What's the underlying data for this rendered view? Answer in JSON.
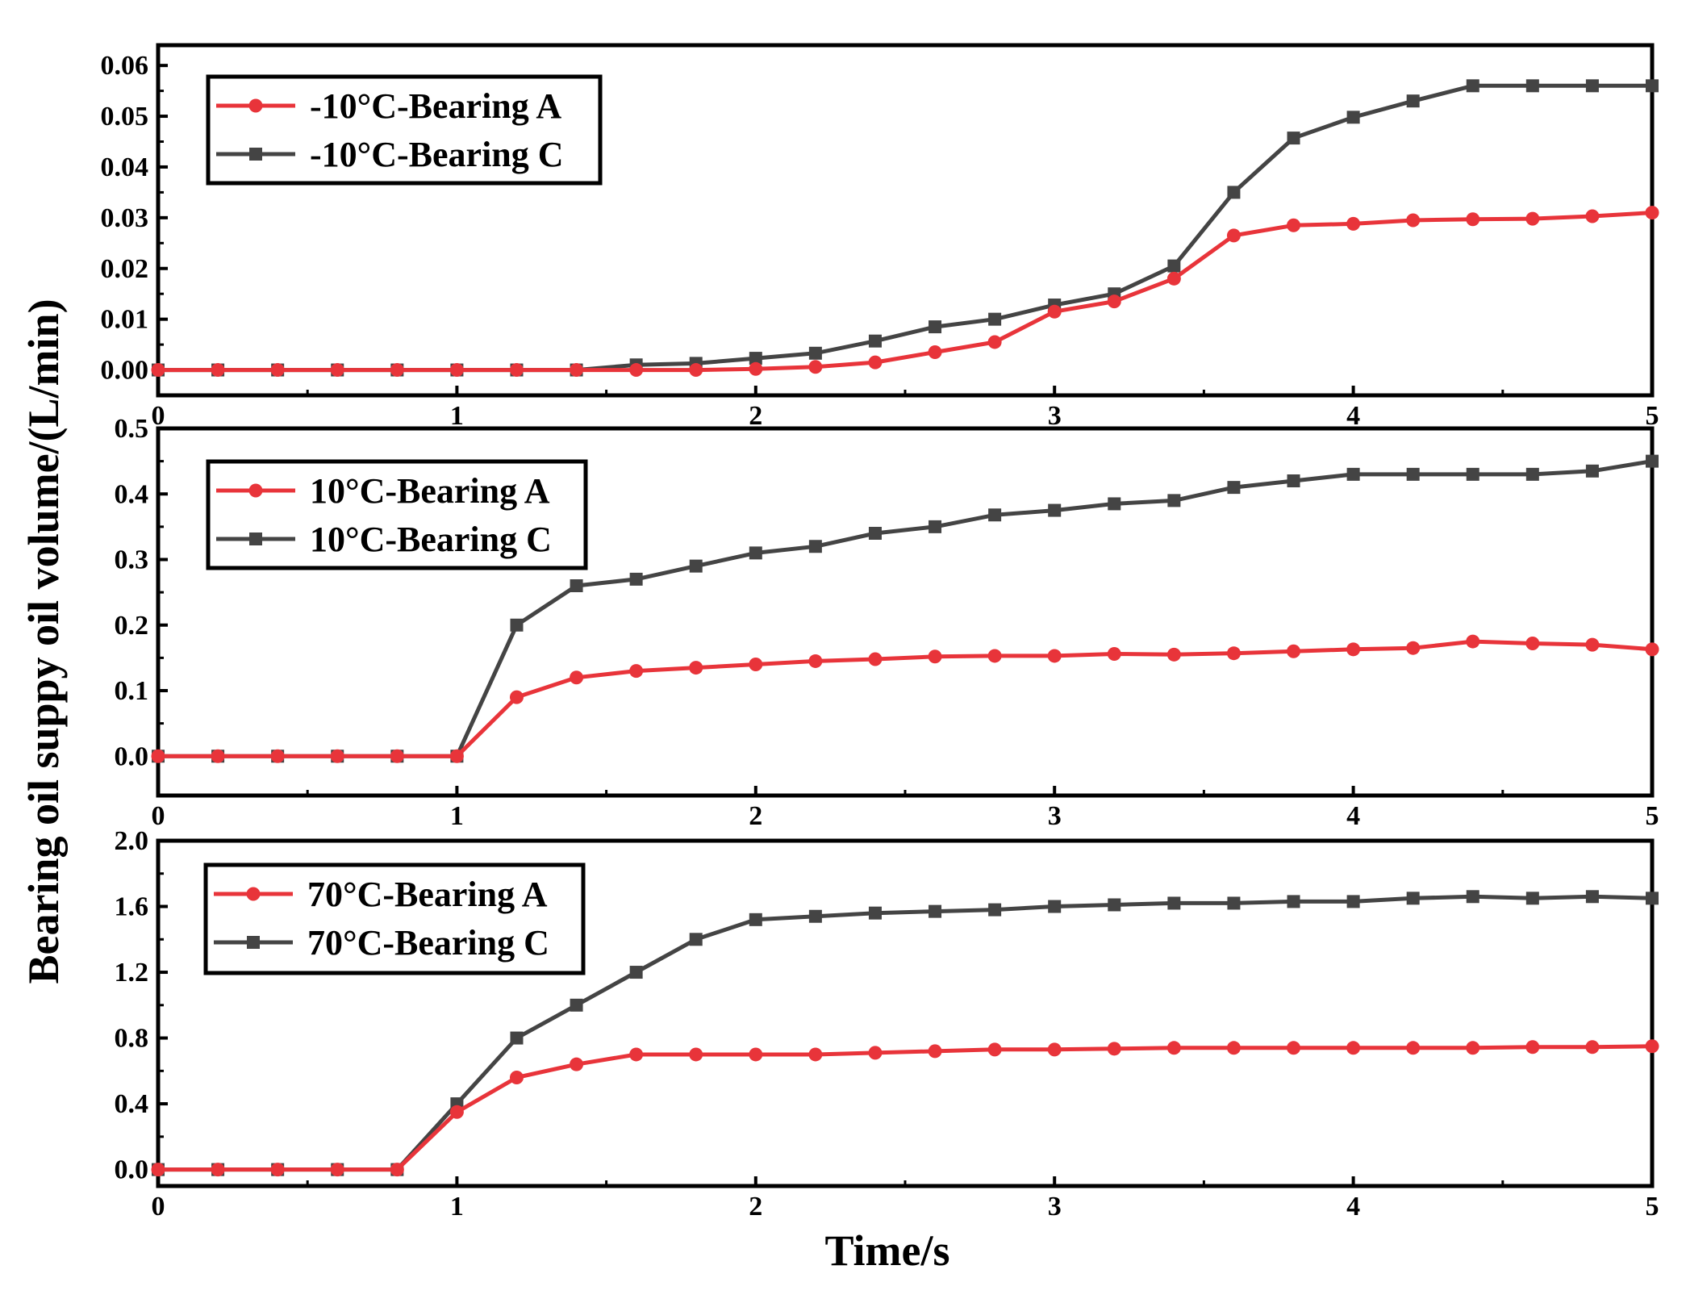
{
  "figure": {
    "xlabel": "Time/s",
    "ylabel": "Bearing  oil suppy oil volume/(L/min)",
    "colors": {
      "bearing_a": "#e8343a",
      "bearing_c": "#444444"
    }
  },
  "chart_data": [
    {
      "type": "line",
      "xlim": [
        0,
        5
      ],
      "ylim": [
        -0.005,
        0.064
      ],
      "xticks": [
        0,
        1,
        2,
        3,
        4,
        5
      ],
      "xtick_labels": [
        "0",
        "1",
        "2",
        "3",
        "4",
        "5"
      ],
      "yticks": [
        0.0,
        0.01,
        0.02,
        0.03,
        0.04,
        0.05,
        0.06
      ],
      "ytick_labels": [
        "0.00",
        "0.01",
        "0.02",
        "0.03",
        "0.04",
        "0.05",
        "0.06"
      ],
      "legend_position": "top-left",
      "series": [
        {
          "name": "-10°C-Bearing A",
          "marker": "circle",
          "color_key": "bearing_a",
          "x": [
            0,
            0.2,
            0.4,
            0.6,
            0.8,
            1.0,
            1.2,
            1.4,
            1.6,
            1.8,
            2.0,
            2.2,
            2.4,
            2.6,
            2.8,
            3.0,
            3.2,
            3.4,
            3.6,
            3.8,
            4.0,
            4.2,
            4.4,
            4.6,
            4.8,
            5.0
          ],
          "y": [
            0,
            0,
            0,
            0,
            0,
            0,
            0,
            0,
            0,
            0,
            0.0002,
            0.0006,
            0.0015,
            0.0035,
            0.0055,
            0.0115,
            0.0135,
            0.018,
            0.0265,
            0.0285,
            0.0288,
            0.0295,
            0.0297,
            0.0298,
            0.0303,
            0.031
          ]
        },
        {
          "name": "-10°C-Bearing C",
          "marker": "square",
          "color_key": "bearing_c",
          "x": [
            0,
            0.2,
            0.4,
            0.6,
            0.8,
            1.0,
            1.2,
            1.4,
            1.6,
            1.8,
            2.0,
            2.2,
            2.4,
            2.6,
            2.8,
            3.0,
            3.2,
            3.4,
            3.6,
            3.8,
            4.0,
            4.2,
            4.4,
            4.6,
            4.8,
            5.0
          ],
          "y": [
            0,
            0,
            0,
            0,
            0,
            0,
            0,
            0,
            0.001,
            0.0013,
            0.0023,
            0.0033,
            0.0057,
            0.0085,
            0.01,
            0.0128,
            0.015,
            0.0205,
            0.035,
            0.0457,
            0.0498,
            0.053,
            0.056,
            0.056,
            0.056,
            0.056
          ]
        }
      ]
    },
    {
      "type": "line",
      "xlim": [
        0,
        5
      ],
      "ylim": [
        -0.06,
        0.5
      ],
      "xticks": [
        0,
        1,
        2,
        3,
        4,
        5
      ],
      "xtick_labels": [
        "0",
        "1",
        "2",
        "3",
        "4",
        "5"
      ],
      "yticks": [
        0.0,
        0.1,
        0.2,
        0.3,
        0.4,
        0.5
      ],
      "ytick_labels": [
        "0.0",
        "0.1",
        "0.2",
        "0.3",
        "0.4",
        "0.5"
      ],
      "legend_position": "top-left",
      "series": [
        {
          "name": "10°C-Bearing A",
          "marker": "circle",
          "color_key": "bearing_a",
          "x": [
            0,
            0.2,
            0.4,
            0.6,
            0.8,
            1.0,
            1.2,
            1.4,
            1.6,
            1.8,
            2.0,
            2.2,
            2.4,
            2.6,
            2.8,
            3.0,
            3.2,
            3.4,
            3.6,
            3.8,
            4.0,
            4.2,
            4.4,
            4.6,
            4.8,
            5.0
          ],
          "y": [
            0,
            0,
            0,
            0,
            0,
            0,
            0.09,
            0.12,
            0.13,
            0.135,
            0.14,
            0.145,
            0.148,
            0.152,
            0.153,
            0.153,
            0.156,
            0.155,
            0.157,
            0.16,
            0.163,
            0.165,
            0.175,
            0.172,
            0.17,
            0.163
          ]
        },
        {
          "name": "10°C-Bearing C",
          "marker": "square",
          "color_key": "bearing_c",
          "x": [
            0,
            0.2,
            0.4,
            0.6,
            0.8,
            1.0,
            1.2,
            1.4,
            1.6,
            1.8,
            2.0,
            2.2,
            2.4,
            2.6,
            2.8,
            3.0,
            3.2,
            3.4,
            3.6,
            3.8,
            4.0,
            4.2,
            4.4,
            4.6,
            4.8,
            5.0
          ],
          "y": [
            0,
            0,
            0,
            0,
            0,
            0,
            0.2,
            0.26,
            0.27,
            0.29,
            0.31,
            0.32,
            0.34,
            0.35,
            0.368,
            0.375,
            0.385,
            0.39,
            0.41,
            0.42,
            0.43,
            0.43,
            0.43,
            0.43,
            0.435,
            0.45
          ]
        }
      ]
    },
    {
      "type": "line",
      "xlim": [
        0,
        5
      ],
      "ylim": [
        -0.1,
        2.0
      ],
      "xticks": [
        0,
        1,
        2,
        3,
        4,
        5
      ],
      "xtick_labels": [
        "0",
        "1",
        "2",
        "3",
        "4",
        "5"
      ],
      "yticks": [
        0.0,
        0.4,
        0.8,
        1.2,
        1.6,
        2.0
      ],
      "ytick_labels": [
        "0.0",
        "0.4",
        "0.8",
        "1.2",
        "1.6",
        "2.0"
      ],
      "legend_position": "top-left",
      "series": [
        {
          "name": "70°C-Bearing A",
          "marker": "circle",
          "color_key": "bearing_a",
          "x": [
            0,
            0.2,
            0.4,
            0.6,
            0.8,
            1.0,
            1.2,
            1.4,
            1.6,
            1.8,
            2.0,
            2.2,
            2.4,
            2.6,
            2.8,
            3.0,
            3.2,
            3.4,
            3.6,
            3.8,
            4.0,
            4.2,
            4.4,
            4.6,
            4.8,
            5.0
          ],
          "y": [
            0,
            0,
            0,
            0,
            0,
            0.35,
            0.56,
            0.64,
            0.7,
            0.7,
            0.7,
            0.7,
            0.71,
            0.72,
            0.73,
            0.73,
            0.735,
            0.74,
            0.74,
            0.74,
            0.74,
            0.74,
            0.74,
            0.745,
            0.745,
            0.75
          ]
        },
        {
          "name": "70°C-Bearing C",
          "marker": "square",
          "color_key": "bearing_c",
          "x": [
            0,
            0.2,
            0.4,
            0.6,
            0.8,
            1.0,
            1.2,
            1.4,
            1.6,
            1.8,
            2.0,
            2.2,
            2.4,
            2.6,
            2.8,
            3.0,
            3.2,
            3.4,
            3.6,
            3.8,
            4.0,
            4.2,
            4.4,
            4.6,
            4.8,
            5.0
          ],
          "y": [
            0,
            0,
            0,
            0,
            0,
            0.4,
            0.8,
            1.0,
            1.2,
            1.4,
            1.52,
            1.54,
            1.56,
            1.57,
            1.58,
            1.6,
            1.61,
            1.62,
            1.62,
            1.63,
            1.63,
            1.65,
            1.66,
            1.65,
            1.66,
            1.65
          ]
        }
      ]
    }
  ]
}
